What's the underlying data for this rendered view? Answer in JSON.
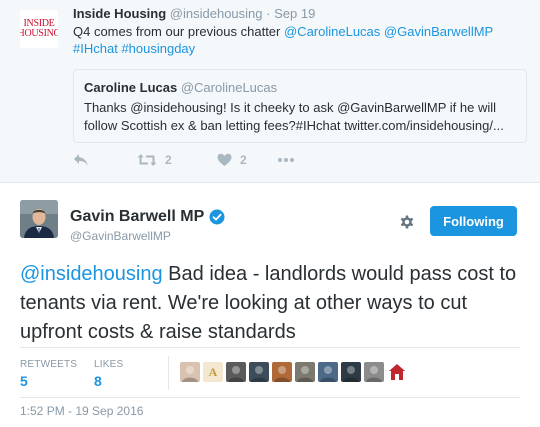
{
  "context_tweet": {
    "logo_line1": "INSIDE",
    "logo_line2": "HOUSING",
    "name": "Inside Housing",
    "handle": "@insidehousing",
    "separator": "·",
    "date": "Sep 19",
    "text_plain": "Q4 comes from our previous chatter ",
    "mentions": [
      "@CarolineLucas",
      "@GavinBarwellMP",
      "#IHchat",
      "#housingday"
    ],
    "quote": {
      "name": "Caroline Lucas",
      "handle": "@CarolineLucas",
      "text": "Thanks @insidehousing! Is it cheeky to ask @GavinBarwellMP if he will follow Scottish ex & ban letting fees?#IHchat  twitter.com/insidehousing/..."
    },
    "actions": {
      "retweet_count": "2",
      "like_count": "2"
    }
  },
  "main_tweet": {
    "name": "Gavin Barwell MP",
    "handle": "@GavinBarwellMP",
    "follow_label": "Following",
    "text_mention": "@insidehousing",
    "text_body": " Bad idea - landlords would pass cost to tenants via rent. We're looking at other ways to cut upfront costs & raise standards",
    "stats": {
      "retweets_label": "RETWEETS",
      "retweets": "5",
      "likes_label": "LIKES",
      "likes": "8"
    },
    "likers": [
      {
        "icon": "liker-avatar-1",
        "color": "#d9c3b0"
      },
      {
        "icon": "liker-avatar-2",
        "letter": "A",
        "color": "#f3e7d0"
      },
      {
        "icon": "liker-avatar-3",
        "color": "#5b5b5b"
      },
      {
        "icon": "liker-avatar-4",
        "color": "#3c4c5a"
      },
      {
        "icon": "liker-avatar-5",
        "color": "#b06a3a"
      },
      {
        "icon": "liker-avatar-6",
        "color": "#7c7a6e"
      },
      {
        "icon": "liker-avatar-7",
        "color": "#4c6a88"
      },
      {
        "icon": "liker-avatar-8",
        "color": "#2e3b44"
      },
      {
        "icon": "liker-avatar-9",
        "color": "#8c8c8c"
      },
      {
        "icon": "liker-avatar-10-house",
        "color": "#c0272d"
      }
    ],
    "timestamp": "1:52 PM - 19 Sep 2016"
  },
  "colors": {
    "link": "#1b95e0",
    "muted": "#8899a6",
    "text": "#292f33",
    "context_bg": "#f5f8fa",
    "logo_red": "#c8102e"
  }
}
